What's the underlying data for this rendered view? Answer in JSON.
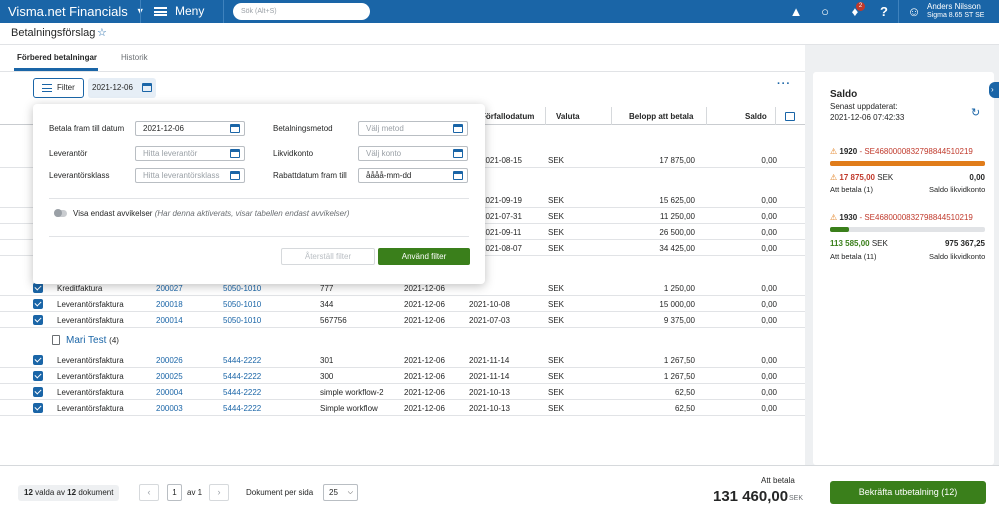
{
  "topbar": {
    "brand": "Visma.net Financials",
    "menu_label": "Meny",
    "search_placeholder": "Sök (Alt+S)",
    "notification_count": "2",
    "user_name": "Anders Nilsson",
    "user_company": "Sigma 8.65 ST SE"
  },
  "page": {
    "title": "Betalningsförslag",
    "tabs": [
      {
        "label": "Förbered betalningar"
      },
      {
        "label": "Historik"
      }
    ]
  },
  "toolbar": {
    "filter_label": "Filter",
    "date_chip": "2021-12-06"
  },
  "table": {
    "headers": {
      "duedate": "Förfallodatum",
      "currency": "Valuta",
      "amount": "Belopp att betala",
      "balance": "Saldo"
    },
    "hidden_rows": [
      {
        "duedate": "2021-08-15",
        "currency": "SEK",
        "amount": "17 875,00",
        "balance": "0,00"
      },
      {
        "duedate": "2021-09-19",
        "currency": "SEK",
        "amount": "15 625,00",
        "balance": "0,00"
      },
      {
        "duedate": "2021-07-31",
        "currency": "SEK",
        "amount": "11 250,00",
        "balance": "0,00"
      },
      {
        "duedate": "2021-09-11",
        "currency": "SEK",
        "amount": "26 500,00",
        "balance": "0,00"
      },
      {
        "duedate": "2021-08-07",
        "currency": "SEK",
        "amount": "34 425,00",
        "balance": "0,00"
      }
    ],
    "rows_a": [
      {
        "type": "Kreditfaktura",
        "no": "200027",
        "supplier": "5050-1010",
        "ref": "777",
        "date": "2021-12-06",
        "duedate": "",
        "currency": "SEK",
        "amount": "1 250,00",
        "balance": "0,00"
      },
      {
        "type": "Leverantörsfaktura",
        "no": "200018",
        "supplier": "5050-1010",
        "ref": "344",
        "date": "2021-12-06",
        "duedate": "2021-10-08",
        "currency": "SEK",
        "amount": "15 000,00",
        "balance": "0,00"
      },
      {
        "type": "Leverantörsfaktura",
        "no": "200014",
        "supplier": "5050-1010",
        "ref": "567756",
        "date": "2021-12-06",
        "duedate": "2021-07-03",
        "currency": "SEK",
        "amount": "9 375,00",
        "balance": "0,00"
      }
    ],
    "group": {
      "name": "Mari Test",
      "count": "(4)"
    },
    "rows_b": [
      {
        "type": "Leverantörsfaktura",
        "no": "200026",
        "supplier": "5444-2222",
        "ref": "301",
        "date": "2021-12-06",
        "duedate": "2021-11-14",
        "currency": "SEK",
        "amount": "1 267,50",
        "balance": "0,00"
      },
      {
        "type": "Leverantörsfaktura",
        "no": "200025",
        "supplier": "5444-2222",
        "ref": "300",
        "date": "2021-12-06",
        "duedate": "2021-11-14",
        "currency": "SEK",
        "amount": "1 267,50",
        "balance": "0,00"
      },
      {
        "type": "Leverantörsfaktura",
        "no": "200004",
        "supplier": "5444-2222",
        "ref": "simple workflow-2",
        "date": "2021-12-06",
        "duedate": "2021-10-13",
        "currency": "SEK",
        "amount": "62,50",
        "balance": "0,00"
      },
      {
        "type": "Leverantörsfaktura",
        "no": "200003",
        "supplier": "5444-2222",
        "ref": "Simple workflow",
        "date": "2021-12-06",
        "duedate": "2021-10-13",
        "currency": "SEK",
        "amount": "62,50",
        "balance": "0,00"
      }
    ]
  },
  "filter_popup": {
    "due_label": "Betala fram till datum",
    "due_value": "2021-12-06",
    "supplier_label": "Leverantör",
    "supplier_placeholder": "Hitta leverantör",
    "class_label": "Leverantörsklass",
    "class_placeholder": "Hitta leverantörsklass",
    "method_label": "Betalningsmetod",
    "method_placeholder": "Välj metod",
    "account_label": "Likvidkonto",
    "account_placeholder": "Välj konto",
    "discount_label": "Rabattdatum fram till",
    "discount_placeholder": "åååå-mm-dd",
    "toggle_label": "Visa endast avvikelser",
    "toggle_note": "(Har denna aktiverats, visar tabellen endast avvikelser)",
    "reset_label": "Återställ filter",
    "apply_label": "Använd filter"
  },
  "side": {
    "title": "Saldo",
    "updated_label": "Senast uppdaterat:",
    "updated_value": "2021-12-06 07:42:33",
    "accounts": [
      {
        "code": "1920",
        "iban": "SE4680000832798844510219",
        "bar_fraction": 1.0,
        "bar_color": "#e07c1a",
        "amount": "17 875,00",
        "amount_cur": "SEK",
        "amount_color": "#c0392b",
        "balance": "0,00",
        "left_label": "Att betala (1)",
        "right_label": "Saldo likvidkonto"
      },
      {
        "code": "1930",
        "iban": "SE4680000832798844510219",
        "bar_fraction": 0.12,
        "bar_color": "#3a7f1b",
        "amount": "113 585,00",
        "amount_cur": "SEK",
        "amount_color": "#3a7f1b",
        "balance": "975 367,25",
        "left_label": "Att betala (11)",
        "right_label": "Saldo likvidkonto"
      }
    ]
  },
  "footer": {
    "selected_count": "12",
    "selected_of": "valda av",
    "total_count": "12",
    "selected_suffix": "dokument",
    "page_value": "1",
    "page_of": "av 1",
    "per_page_label": "Dokument per sida",
    "per_page_value": "25",
    "to_pay_label": "Att betala",
    "to_pay_amount": "131 460,00",
    "to_pay_currency": "SEK",
    "confirm_label": "Bekräfta utbetalning (12)"
  }
}
